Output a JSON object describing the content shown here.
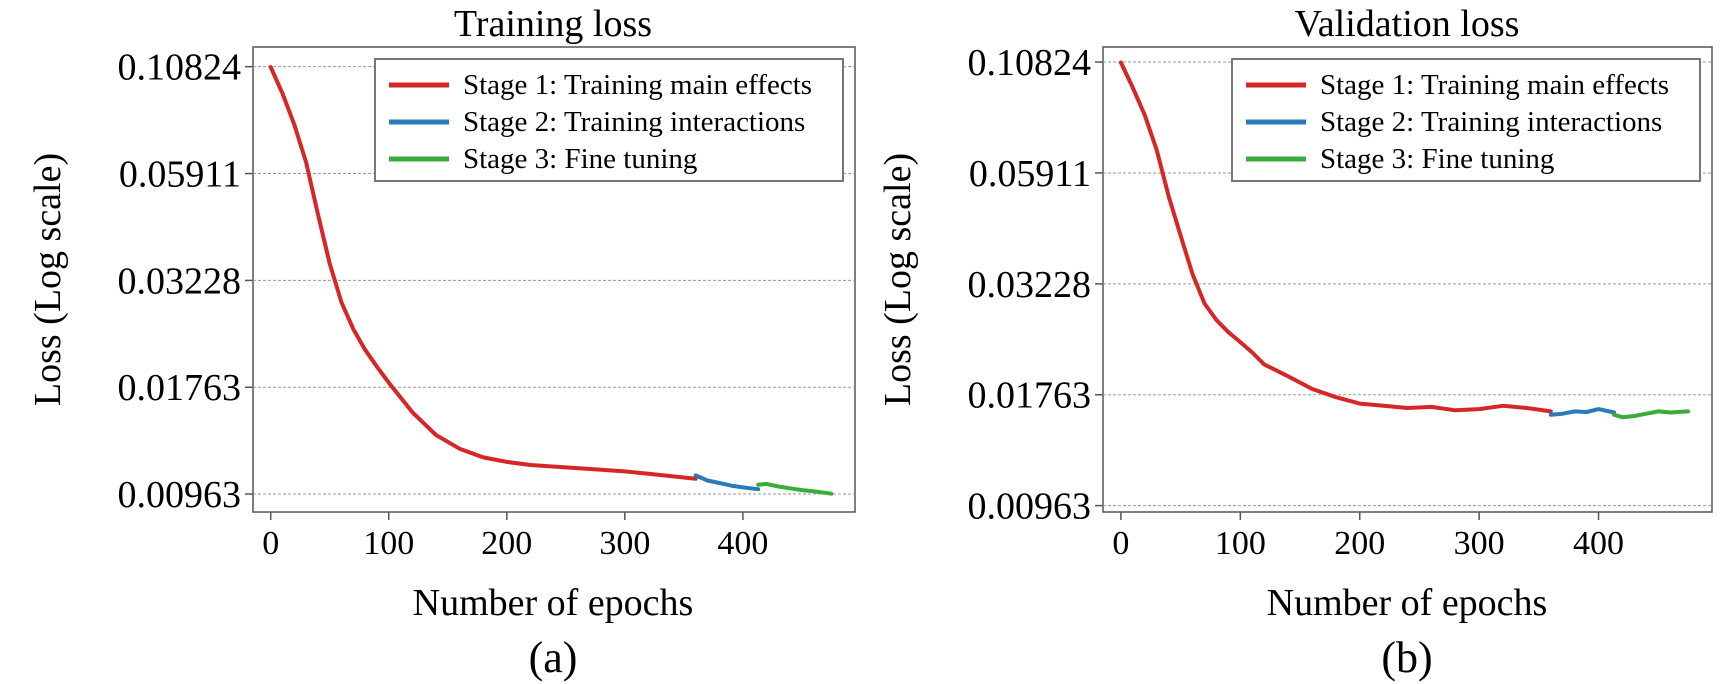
{
  "chart_data": [
    {
      "type": "line",
      "title": "Training loss",
      "panel_label": "(a)",
      "xlabel": "Number of epochs",
      "ylabel": "Loss (Log scale)",
      "log_y": true,
      "xlim": [
        -15,
        495
      ],
      "ylim": [
        0.0087,
        0.121
      ],
      "xticks": [
        0,
        100,
        200,
        300,
        400
      ],
      "xtick_labels": [
        "0",
        "100",
        "200",
        "300",
        "400"
      ],
      "yticks": [
        0.10824,
        0.05911,
        0.03228,
        0.01763,
        0.00963
      ],
      "ytick_labels": [
        "0.10824",
        "0.05911",
        "0.03228",
        "0.01763",
        "0.00963"
      ],
      "grid": true,
      "legend_position": "top-right",
      "series": [
        {
          "name": "Stage 1: Training main effects",
          "color": "#d62728",
          "x": [
            0,
            10,
            20,
            30,
            40,
            50,
            60,
            70,
            80,
            90,
            100,
            120,
            140,
            160,
            180,
            200,
            220,
            250,
            280,
            300,
            320,
            340,
            360
          ],
          "y": [
            0.108,
            0.093,
            0.078,
            0.063,
            0.047,
            0.0355,
            0.0285,
            0.0245,
            0.0218,
            0.0198,
            0.0181,
            0.0153,
            0.01345,
            0.01245,
            0.01185,
            0.01155,
            0.01135,
            0.0112,
            0.01105,
            0.01095,
            0.0108,
            0.01065,
            0.0105
          ]
        },
        {
          "name": "Stage 2: Training interactions",
          "color": "#2b7bba",
          "x": [
            360,
            370,
            380,
            390,
            400,
            413
          ],
          "y": [
            0.0107,
            0.0104,
            0.01025,
            0.0101,
            0.01,
            0.0099
          ]
        },
        {
          "name": "Stage 3: Fine tuning",
          "color": "#3bab3b",
          "x": [
            413,
            420,
            430,
            440,
            450,
            460,
            475
          ],
          "y": [
            0.01015,
            0.0102,
            0.01005,
            0.00995,
            0.00985,
            0.00978,
            0.00965
          ]
        }
      ]
    },
    {
      "type": "line",
      "title": "Validation loss",
      "panel_label": "(b)",
      "xlabel": "Number of epochs",
      "ylabel": "Loss (Log scale)",
      "log_y": true,
      "xlim": [
        -15,
        495
      ],
      "ylim": [
        0.0093,
        0.1175
      ],
      "xticks": [
        0,
        100,
        200,
        300,
        400
      ],
      "xtick_labels": [
        "0",
        "100",
        "200",
        "300",
        "400"
      ],
      "yticks": [
        0.10824,
        0.05911,
        0.03228,
        0.01763,
        0.00963
      ],
      "ytick_labels": [
        "0.10824",
        "0.05911",
        "0.03228",
        "0.01763",
        "0.00963"
      ],
      "grid": true,
      "legend_position": "top-right",
      "series": [
        {
          "name": "Stage 1: Training main effects",
          "color": "#d62728",
          "x": [
            0,
            10,
            20,
            30,
            40,
            50,
            60,
            70,
            80,
            90,
            100,
            110,
            120,
            140,
            160,
            180,
            200,
            220,
            240,
            260,
            280,
            300,
            320,
            340,
            360
          ],
          "y": [
            0.108,
            0.094,
            0.081,
            0.067,
            0.052,
            0.042,
            0.034,
            0.029,
            0.0265,
            0.0248,
            0.0235,
            0.0222,
            0.0208,
            0.0195,
            0.0182,
            0.0174,
            0.0168,
            0.0166,
            0.0164,
            0.0165,
            0.0162,
            0.0163,
            0.0166,
            0.0164,
            0.0161
          ]
        },
        {
          "name": "Stage 2: Training interactions",
          "color": "#2b7bba",
          "x": [
            360,
            370,
            380,
            390,
            400,
            413
          ],
          "y": [
            0.0158,
            0.0159,
            0.0161,
            0.01605,
            0.0163,
            0.016
          ]
        },
        {
          "name": "Stage 3: Fine tuning",
          "color": "#3bab3b",
          "x": [
            413,
            420,
            430,
            440,
            450,
            460,
            475
          ],
          "y": [
            0.0158,
            0.0156,
            0.0157,
            0.0159,
            0.0161,
            0.016,
            0.0161
          ]
        }
      ]
    }
  ]
}
